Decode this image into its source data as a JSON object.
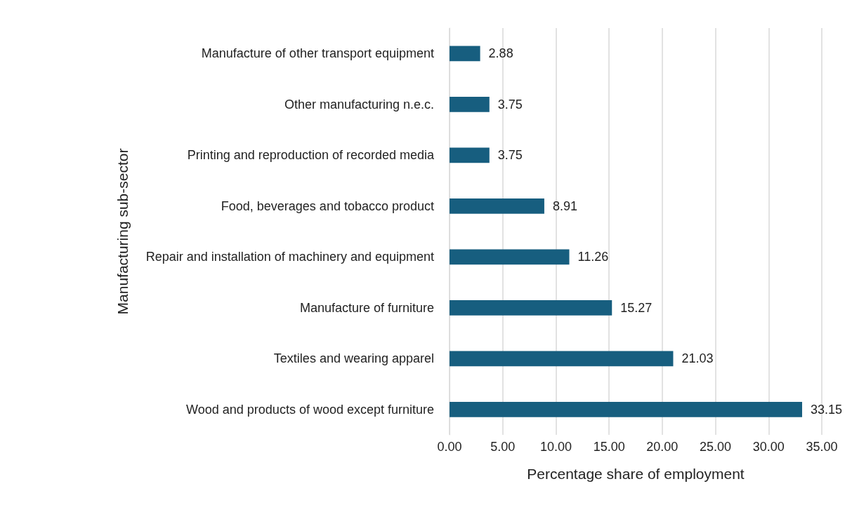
{
  "chart_data": {
    "type": "bar",
    "orientation": "horizontal",
    "xlabel": "Percentage share of employment",
    "ylabel": "Manufacturing sub-sector",
    "categories": [
      "Manufacture of other transport equipment",
      "Other manufacturing n.e.c.",
      "Printing and reproduction of recorded media",
      "Food, beverages and tobacco product",
      "Repair and installation of machinery and equipment",
      "Manufacture of furniture",
      "Textiles and wearing apparel",
      "Wood and products of wood except furniture"
    ],
    "values": [
      2.88,
      3.75,
      3.75,
      8.91,
      11.26,
      15.27,
      21.03,
      33.15
    ],
    "color": "#175e7f",
    "xlim": [
      0,
      35
    ],
    "xticks": [
      {
        "value": 0,
        "label": "0.00"
      },
      {
        "value": 5,
        "label": "5.00"
      },
      {
        "value": 10,
        "label": "10.00"
      },
      {
        "value": 15,
        "label": "15.00"
      },
      {
        "value": 20,
        "label": "20.00"
      },
      {
        "value": 25,
        "label": "25.00"
      },
      {
        "value": 30,
        "label": "30.00"
      },
      {
        "value": 35,
        "label": "35.00"
      }
    ],
    "grid": "x",
    "data_labels": true
  }
}
